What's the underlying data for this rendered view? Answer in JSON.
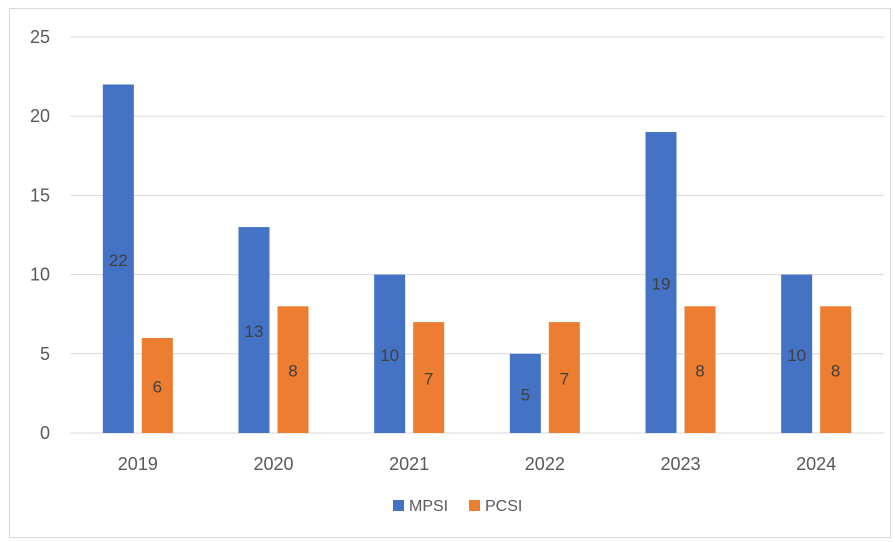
{
  "chart_data": {
    "type": "bar",
    "categories": [
      "2019",
      "2020",
      "2021",
      "2022",
      "2023",
      "2024"
    ],
    "series": [
      {
        "name": "MPSI",
        "values": [
          22,
          13,
          10,
          5,
          19,
          10
        ],
        "color": "#4472c4"
      },
      {
        "name": "PCSI",
        "values": [
          6,
          8,
          7,
          7,
          8,
          8
        ],
        "color": "#ed7d31"
      }
    ],
    "ylim": [
      0,
      25
    ],
    "yticks": [
      0,
      5,
      10,
      15,
      20,
      25
    ],
    "grid": true,
    "legend": "bottom",
    "data_labels": true,
    "colors": {
      "gridline": "#d9d9d9",
      "tick_text": "#595959",
      "label_text": "#404040"
    }
  }
}
